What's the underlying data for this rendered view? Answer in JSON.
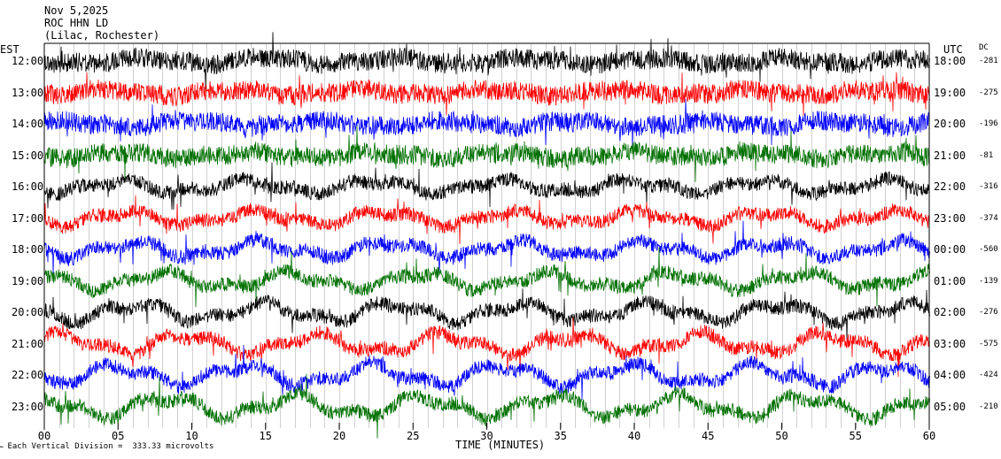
{
  "header": {
    "date": "Nov 5,2025",
    "station": "ROC HHN LD",
    "location": "(Lilac, Rochester)"
  },
  "left_axis_label": "EST",
  "right_axis_label": "UTC",
  "dc_header": "DC",
  "footer_note": "Each Vertical Division =  333.33 microvolts",
  "colors": {
    "black": "#000000",
    "red": "#ff0000",
    "blue": "#0000ff",
    "green": "#007000"
  },
  "chart_data": {
    "type": "line",
    "description_of_axes": "helicorder",
    "xlabel": "TIME (MINUTES)",
    "xlim": [
      0,
      60
    ],
    "x_ticks": [
      "00",
      "05",
      "10",
      "15",
      "20",
      "25",
      "30",
      "35",
      "40",
      "45",
      "50",
      "55",
      "60"
    ],
    "rows": [
      {
        "est": "12:00",
        "utc": "18:00",
        "dc": "-281",
        "color": "black"
      },
      {
        "est": "13:00",
        "utc": "19:00",
        "dc": "-275",
        "color": "red"
      },
      {
        "est": "14:00",
        "utc": "20:00",
        "dc": "-196",
        "color": "blue"
      },
      {
        "est": "15:00",
        "utc": "21:00",
        "dc": "-81",
        "color": "green"
      },
      {
        "est": "16:00",
        "utc": "22:00",
        "dc": "-316",
        "color": "black"
      },
      {
        "est": "17:00",
        "utc": "23:00",
        "dc": "-374",
        "color": "red"
      },
      {
        "est": "18:00",
        "utc": "00:00",
        "dc": "-560",
        "color": "blue"
      },
      {
        "est": "19:00",
        "utc": "01:00",
        "dc": "-139",
        "color": "green"
      },
      {
        "est": "20:00",
        "utc": "02:00",
        "dc": "-276",
        "color": "black"
      },
      {
        "est": "21:00",
        "utc": "03:00",
        "dc": "-575",
        "color": "red"
      },
      {
        "est": "22:00",
        "utc": "04:00",
        "dc": "-424",
        "color": "blue"
      },
      {
        "est": "23:00",
        "utc": "05:00",
        "dc": "-210",
        "color": "green"
      }
    ]
  }
}
